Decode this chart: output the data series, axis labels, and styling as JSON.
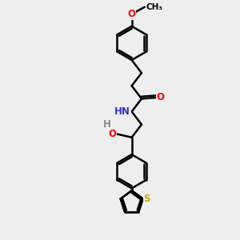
{
  "bg_color": "#eeeeee",
  "bond_color": "#000000",
  "bond_width": 1.8,
  "atom_colors": {
    "O": "#ff0000",
    "N": "#3333cc",
    "S": "#ccaa00",
    "C": "#000000",
    "H": "#888888"
  },
  "font_size": 8.5,
  "fig_size": [
    3.0,
    3.0
  ],
  "dpi": 100
}
